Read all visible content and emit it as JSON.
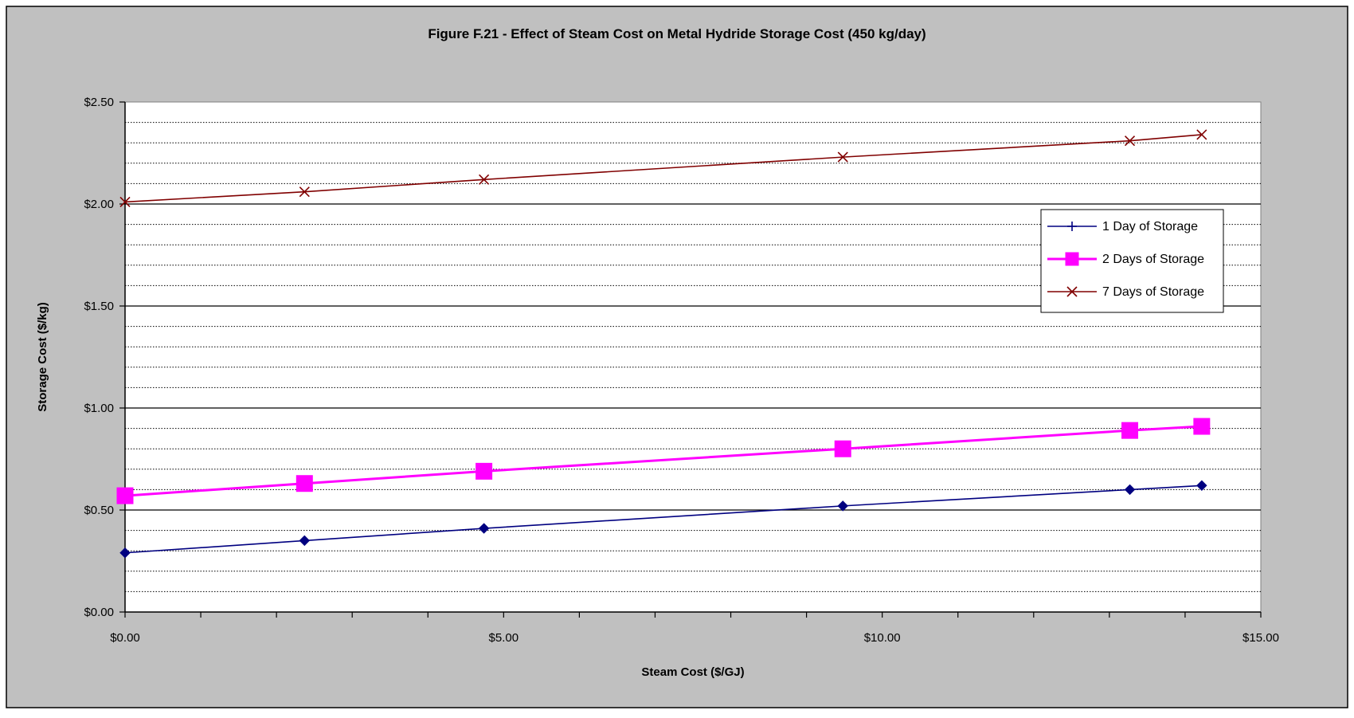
{
  "chart_data": {
    "type": "line",
    "title": "Figure F.21 - Effect of Steam Cost on Metal Hydride Storage Cost (450 kg/day)",
    "xlabel": "Steam Cost ($/GJ)",
    "ylabel": "Storage Cost ($/kg)",
    "xlim": [
      0,
      15
    ],
    "ylim": [
      0,
      2.5
    ],
    "x_ticks": [
      "$0.00",
      "$5.00",
      "$10.00",
      "$15.00"
    ],
    "y_ticks": [
      "$0.00",
      "$0.50",
      "$1.00",
      "$1.50",
      "$2.00",
      "$2.50"
    ],
    "grid": true,
    "legend_position": "right",
    "x": [
      0,
      2.37,
      4.74,
      9.48,
      13.27,
      14.22
    ],
    "series": [
      {
        "name": "1 Day of Storage",
        "color": "#000080",
        "marker": "diamond",
        "values": [
          0.29,
          0.35,
          0.41,
          0.52,
          0.6,
          0.62
        ]
      },
      {
        "name": "2 Days of Storage",
        "color": "#ff00ff",
        "marker": "square",
        "values": [
          0.57,
          0.63,
          0.69,
          0.8,
          0.89,
          0.91
        ]
      },
      {
        "name": "7 Days of Storage",
        "color": "#800000",
        "marker": "x",
        "values": [
          2.01,
          2.06,
          2.12,
          2.23,
          2.31,
          2.34
        ]
      }
    ]
  }
}
